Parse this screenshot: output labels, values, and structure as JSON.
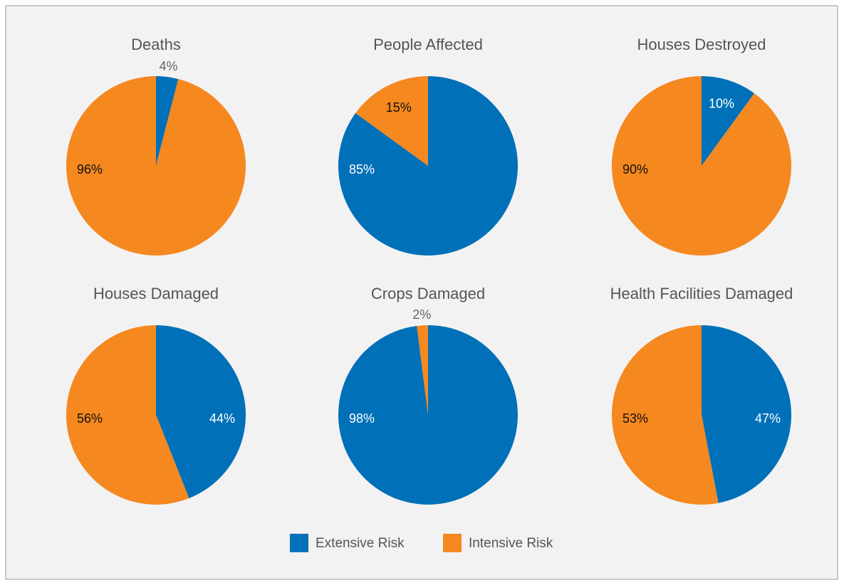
{
  "legend": {
    "items": [
      "Extensive Risk",
      "Intensive Risk"
    ],
    "colors": [
      "#0070b8",
      "#f5881f"
    ]
  },
  "chart_data": [
    {
      "type": "pie",
      "title": "Deaths",
      "values": [
        4,
        96
      ],
      "value_labels": [
        "4%",
        "96%"
      ]
    },
    {
      "type": "pie",
      "title": "People Affected",
      "values": [
        85,
        15
      ],
      "value_labels": [
        "85%",
        "15%"
      ]
    },
    {
      "type": "pie",
      "title": "Houses Destroyed",
      "values": [
        10,
        90
      ],
      "value_labels": [
        "10%",
        "90%"
      ]
    },
    {
      "type": "pie",
      "title": "Houses Damaged",
      "values": [
        44,
        56
      ],
      "value_labels": [
        "44%",
        "56%"
      ]
    },
    {
      "type": "pie",
      "title": "Crops Damaged",
      "values": [
        98,
        2
      ],
      "value_labels": [
        "98%",
        "2%"
      ]
    },
    {
      "type": "pie",
      "title": "Health Facilities Damaged",
      "values": [
        47,
        53
      ],
      "value_labels": [
        "47%",
        "53%"
      ]
    }
  ]
}
